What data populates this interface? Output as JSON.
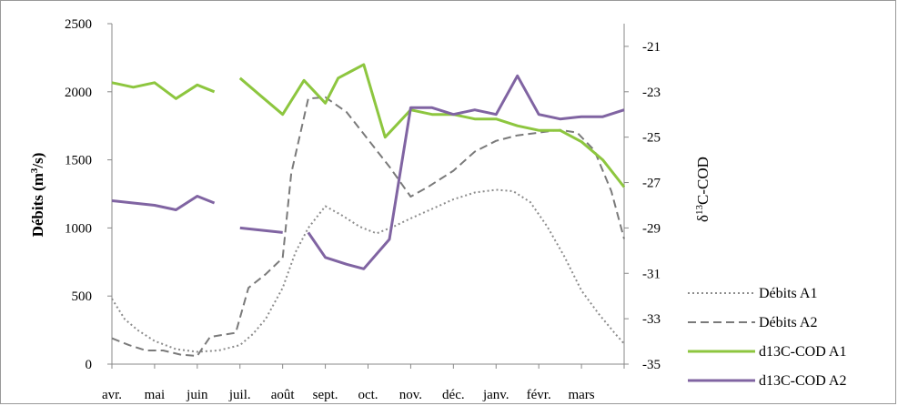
{
  "chart_data": {
    "type": "line",
    "categories": [
      "avr.",
      "mai",
      "juin",
      "juil.",
      "août",
      "sept.",
      "oct.",
      "nov.",
      "déc.",
      "janv.",
      "févr.",
      "mars"
    ],
    "x_range": [
      0,
      12
    ],
    "y_left": {
      "label_main": "Débits (m",
      "label_sup": "3",
      "label_end": "/s)",
      "range": [
        0,
        2500
      ],
      "ticks": [
        "0",
        "500",
        "1000",
        "1500",
        "2000",
        "2500"
      ]
    },
    "y_right": {
      "label_main": "δ",
      "label_sup": "13",
      "label_end": "C-COD",
      "range": [
        -35,
        -20
      ],
      "ticks": [
        "-21",
        "-23",
        "-25",
        "-27",
        "-29",
        "-31",
        "-33",
        "-35"
      ]
    },
    "series": [
      {
        "name": "Débits A1",
        "axis": "left",
        "color": "#8c8c8c",
        "dash": "dotted",
        "segments": [
          [
            [
              0.0,
              480
            ],
            [
              0.3,
              330
            ],
            [
              0.6,
              250
            ],
            [
              1.0,
              170
            ],
            [
              1.5,
              110
            ],
            [
              2.0,
              90
            ],
            [
              2.5,
              100
            ],
            [
              3.0,
              140
            ],
            [
              3.3,
              220
            ],
            [
              3.6,
              330
            ],
            [
              4.0,
              560
            ],
            [
              4.3,
              820
            ],
            [
              4.6,
              1000
            ],
            [
              5.0,
              1160
            ],
            [
              5.4,
              1090
            ],
            [
              5.8,
              1010
            ],
            [
              6.2,
              960
            ],
            [
              6.6,
              1010
            ],
            [
              7.0,
              1070
            ],
            [
              7.5,
              1140
            ],
            [
              8.0,
              1210
            ],
            [
              8.5,
              1260
            ],
            [
              9.0,
              1280
            ],
            [
              9.4,
              1270
            ],
            [
              9.8,
              1190
            ],
            [
              10.2,
              1010
            ],
            [
              10.6,
              790
            ],
            [
              11.0,
              540
            ],
            [
              11.4,
              370
            ],
            [
              11.8,
              220
            ],
            [
              12.0,
              150
            ]
          ]
        ]
      },
      {
        "name": "Débits A2",
        "axis": "left",
        "color": "#7a7a7a",
        "dash": "dashed",
        "segments": [
          [
            [
              0.0,
              190
            ],
            [
              0.4,
              140
            ],
            [
              0.8,
              100
            ],
            [
              1.2,
              100
            ],
            [
              1.6,
              70
            ],
            [
              2.0,
              60
            ],
            [
              2.3,
              200
            ],
            [
              2.9,
              230
            ],
            [
              3.2,
              560
            ],
            [
              3.6,
              660
            ],
            [
              4.0,
              780
            ],
            [
              4.2,
              1400
            ],
            [
              4.6,
              1950
            ],
            [
              5.0,
              1960
            ],
            [
              5.5,
              1850
            ],
            [
              6.0,
              1650
            ],
            [
              6.5,
              1450
            ],
            [
              7.0,
              1230
            ],
            [
              7.4,
              1300
            ],
            [
              8.0,
              1420
            ],
            [
              8.5,
              1560
            ],
            [
              9.0,
              1640
            ],
            [
              9.5,
              1680
            ],
            [
              10.0,
              1700
            ],
            [
              10.5,
              1720
            ],
            [
              10.9,
              1700
            ],
            [
              11.3,
              1570
            ],
            [
              11.7,
              1270
            ],
            [
              12.0,
              920
            ]
          ]
        ]
      },
      {
        "name": "d13C-COD A1",
        "axis": "right",
        "color": "#8dc63f",
        "dash": "solid",
        "segments": [
          [
            [
              0.0,
              -22.6
            ],
            [
              0.5,
              -22.8
            ],
            [
              1.0,
              -22.6
            ],
            [
              1.5,
              -23.3
            ],
            [
              2.0,
              -22.7
            ],
            [
              2.4,
              -23.0
            ]
          ],
          [
            [
              3.0,
              -22.4
            ],
            [
              3.5,
              -23.2
            ],
            [
              4.0,
              -24.0
            ],
            [
              4.5,
              -22.5
            ],
            [
              5.0,
              -23.5
            ],
            [
              5.3,
              -22.4
            ],
            [
              5.9,
              -21.8
            ],
            [
              6.4,
              -25.0
            ],
            [
              7.0,
              -23.8
            ],
            [
              7.5,
              -24.0
            ],
            [
              8.0,
              -24.0
            ],
            [
              8.5,
              -24.2
            ],
            [
              9.0,
              -24.2
            ],
            [
              9.5,
              -24.5
            ],
            [
              10.0,
              -24.7
            ],
            [
              10.5,
              -24.7
            ],
            [
              11.0,
              -25.2
            ],
            [
              11.5,
              -26.0
            ],
            [
              12.0,
              -27.2
            ]
          ]
        ]
      },
      {
        "name": "d13C-COD A2",
        "axis": "right",
        "color": "#8064a2",
        "dash": "solid",
        "segments": [
          [
            [
              0.0,
              -27.8
            ],
            [
              0.5,
              -27.9
            ],
            [
              1.0,
              -28.0
            ],
            [
              1.5,
              -28.2
            ],
            [
              2.0,
              -27.6
            ],
            [
              2.4,
              -27.9
            ]
          ],
          [
            [
              3.0,
              -29.0
            ],
            [
              3.5,
              -29.1
            ],
            [
              4.0,
              -29.2
            ]
          ],
          [
            [
              4.6,
              -29.2
            ],
            [
              5.0,
              -30.3
            ],
            [
              5.5,
              -30.6
            ],
            [
              5.9,
              -30.8
            ],
            [
              6.5,
              -29.5
            ],
            [
              7.0,
              -23.7
            ],
            [
              7.5,
              -23.7
            ],
            [
              8.0,
              -24.0
            ],
            [
              8.5,
              -23.8
            ],
            [
              9.0,
              -24.0
            ],
            [
              9.5,
              -22.3
            ],
            [
              10.0,
              -24.0
            ],
            [
              10.5,
              -24.2
            ],
            [
              11.0,
              -24.1
            ],
            [
              11.5,
              -24.1
            ],
            [
              12.0,
              -23.8
            ]
          ]
        ]
      }
    ],
    "legend": {
      "position": "bottom-right",
      "items": [
        "Débits A1",
        "Débits A2",
        "d13C-COD A1",
        "d13C-COD A2"
      ]
    }
  }
}
